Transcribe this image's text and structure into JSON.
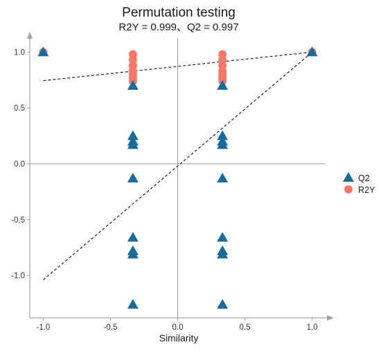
{
  "chart_data": {
    "type": "scatter",
    "title": "Permutation testing",
    "subtitle": "R2Y = 0.999、Q2 = 0.997",
    "xlabel": "Similarity",
    "ylabel": "",
    "xlim": [
      -1.1,
      1.1
    ],
    "ylim": [
      -1.38,
      1.12
    ],
    "x_ticks": [
      -1.0,
      -0.5,
      0.0,
      0.5,
      1.0
    ],
    "x_tick_labels": [
      "-1.0",
      "-0.5",
      "0.0",
      "0.5",
      "1.0"
    ],
    "y_ticks": [
      -1.0,
      -0.5,
      0.0,
      0.5,
      1.0
    ],
    "y_tick_labels": [
      "-1.0",
      "-0.5",
      "0.0",
      "0.5",
      "1.0"
    ],
    "grid": false,
    "legend_position": "right",
    "series": [
      {
        "name": "Q2",
        "marker": "triangle",
        "color": "#1a6b9a",
        "points": [
          [
            1.0,
            1.0
          ],
          [
            -1.0,
            1.0
          ],
          [
            -0.333,
            0.7
          ],
          [
            -0.333,
            0.25
          ],
          [
            -0.333,
            0.2
          ],
          [
            -0.333,
            0.17
          ],
          [
            -0.333,
            -0.13
          ],
          [
            -0.333,
            -0.66
          ],
          [
            -0.333,
            -0.78
          ],
          [
            -0.333,
            -0.81
          ],
          [
            -0.333,
            -1.26
          ],
          [
            0.333,
            0.7
          ],
          [
            0.333,
            0.25
          ],
          [
            0.333,
            0.2
          ],
          [
            0.333,
            0.17
          ],
          [
            0.333,
            -0.13
          ],
          [
            0.333,
            -0.66
          ],
          [
            0.333,
            -0.78
          ],
          [
            0.333,
            -0.81
          ],
          [
            0.333,
            -1.26
          ]
        ]
      },
      {
        "name": "R2Y",
        "marker": "circle",
        "color": "#f4796b",
        "points": [
          [
            1.0,
            1.0
          ],
          [
            -1.0,
            1.0
          ],
          [
            -0.333,
            0.98
          ],
          [
            -0.333,
            0.93
          ],
          [
            -0.333,
            0.88
          ],
          [
            -0.333,
            0.83
          ],
          [
            -0.333,
            0.8
          ],
          [
            -0.333,
            0.77
          ],
          [
            -0.333,
            0.74
          ],
          [
            0.333,
            0.98
          ],
          [
            0.333,
            0.93
          ],
          [
            0.333,
            0.88
          ],
          [
            0.333,
            0.83
          ],
          [
            0.333,
            0.8
          ],
          [
            0.333,
            0.77
          ],
          [
            0.333,
            0.74
          ]
        ]
      }
    ],
    "regression_lines": [
      {
        "for": "R2Y",
        "intercept": 0.872,
        "slope": 0.128,
        "x_range": [
          -1.0,
          1.0
        ]
      },
      {
        "for": "Q2",
        "intercept": -0.02,
        "slope": 1.02,
        "x_range": [
          -1.0,
          1.0
        ]
      }
    ],
    "reference_lines": {
      "x": 0.0,
      "y": 0.0
    }
  }
}
